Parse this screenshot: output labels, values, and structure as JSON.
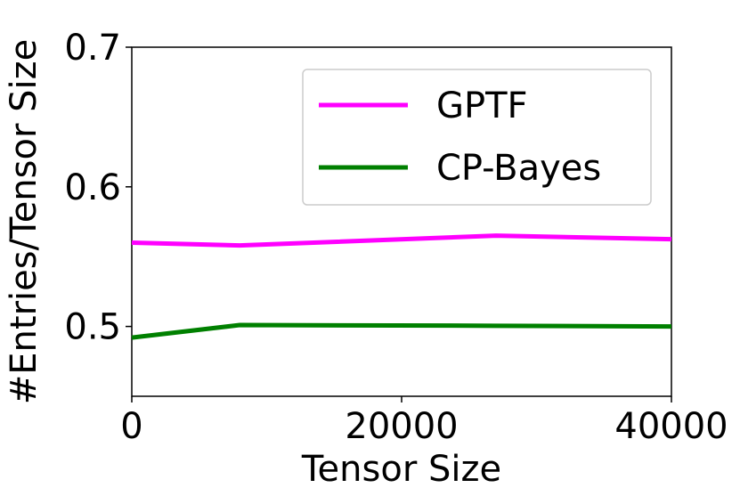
{
  "chart_data": {
    "type": "line",
    "x_label": "Tensor Size",
    "y_label": "#Entries/Tensor Size",
    "x": [
      0,
      8000,
      27000,
      40000
    ],
    "series": [
      {
        "name": "GPTF",
        "color": "#ff00ff",
        "values": [
          0.56,
          0.558,
          0.565,
          0.5625
        ]
      },
      {
        "name": "CP-Bayes",
        "color": "#008000",
        "values": [
          0.492,
          0.501,
          0.5005,
          0.5
        ]
      }
    ],
    "xlim": [
      0,
      40000
    ],
    "xticks": [
      0,
      20000,
      40000
    ],
    "ylim": [
      0.45,
      0.7
    ],
    "yticks": [
      0.5,
      0.6,
      0.7
    ],
    "legend": "upper right"
  }
}
